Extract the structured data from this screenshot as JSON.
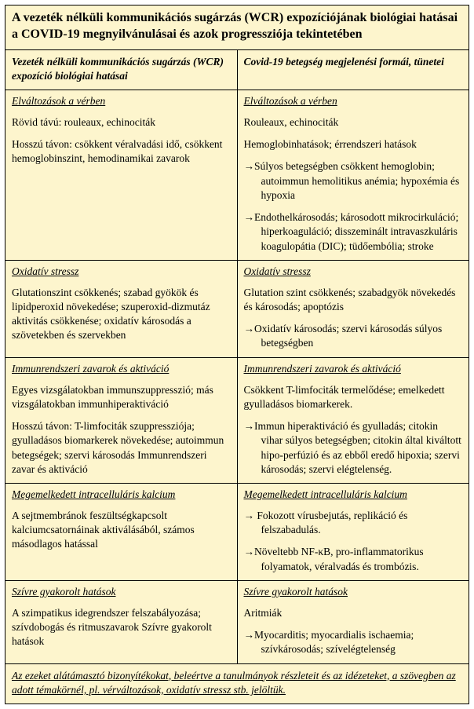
{
  "colors": {
    "background": "#fdf5cd",
    "border": "#000000",
    "text": "#000000"
  },
  "title": "A vezeték nélküli kommunikációs sugárzás (WCR) expozíciójának biológiai hatásai a COVID-19 megnyilvánulásai és azok progressziója tekintetében",
  "col_headers": {
    "left": "Vezeték nélküli kommunikációs sugárzás (WCR) expozíció biológiai hatásai",
    "right": "Covid-19 betegség megjelenési formái, tünetei"
  },
  "rows": [
    {
      "left": {
        "heading": "Elváltozások a vérben",
        "paras": [
          "Rövid távú: rouleaux, echinociták",
          "Hosszú távon: csökkent véralvadási idő, csökkent hemoglobinszint, hemodinamikai zavarok"
        ],
        "arrows": []
      },
      "right": {
        "heading": "Elváltozások a vérben",
        "paras": [
          "Rouleaux, echinociták",
          "Hemoglobinhatások; érrendszeri hatások"
        ],
        "arrows": [
          "Súlyos betegségben csökkent hemoglobin; autoimmun hemolitikus anémia; hypoxémia és hypoxia",
          "Endothelkárosodás; károsodott mikrocirkuláció; hiperkoaguláció; disszeminált intravaszkuláris koagulopátia (DIC); tüdőembólia; stroke"
        ]
      }
    },
    {
      "left": {
        "heading": "Oxidatív stressz",
        "paras": [
          "Glutationszint csökkenés; szabad gyökök és lipidperoxid növekedése; szuperoxid-dizmutáz aktivitás csökkenése; oxidatív károsodás a szövetekben és szervekben"
        ],
        "arrows": []
      },
      "right": {
        "heading": "Oxidatív stressz",
        "paras": [
          "Glutation szint csökkenés; szabadgyök növekedés és károsodás; apoptózis"
        ],
        "arrows": [
          "Oxidatív károsodás; szervi károsodás súlyos betegségben"
        ]
      }
    },
    {
      "left": {
        "heading": "Immunrendszeri zavarok és aktiváció",
        "paras": [
          "Egyes vizsgálatokban immunszuppresszió; más vizsgálatokban immunhiperaktiváció",
          "Hosszú távon: T-limfociták szuppressziója; gyulladásos biomarkerek növekedése; autoimmun betegségek; szervi károsodás Immunrendszeri zavar és aktiváció"
        ],
        "arrows": []
      },
      "right": {
        "heading": "Immunrendszeri zavarok és aktiváció",
        "paras": [
          "Csökkent T-limfociták termelődése; emelkedett gyulladásos biomarkerek."
        ],
        "arrows": [
          "Immun hiperaktiváció és gyulladás; citokin vihar súlyos betegségben; citokin által kiváltott hipo-perfúzió és az ebből eredő hipoxia; szervi károsodás; szervi elégtelenség."
        ]
      }
    },
    {
      "left": {
        "heading": "Megemelkedett intracelluláris kalcium",
        "paras": [
          "A sejtmembránok feszültségkapcsolt kalciumcsatornáinak aktiválásából, számos másodlagos hatással"
        ],
        "arrows": []
      },
      "right": {
        "heading": "Megemelkedett intracelluláris kalcium",
        "paras": [],
        "arrows": [
          " Fokozott vírusbejutás, replikáció és felszabadulás.",
          "Növeltebb NF-κB, pro-inflammatorikus folyamatok, véralvadás és trombózis."
        ]
      }
    },
    {
      "left": {
        "heading": "Szívre gyakorolt hatások",
        "paras": [
          "A szimpatikus idegrendszer felszabályozása; szívdobogás és ritmuszavarok Szívre gyakorolt hatások"
        ],
        "arrows": []
      },
      "right": {
        "heading": "Szívre gyakorolt hatások",
        "paras": [
          "Aritmiák"
        ],
        "arrows": [
          "Myocarditis; myocardialis ischaemia; szívkárosodás; szívelégtelenség"
        ]
      }
    }
  ],
  "footer": "Az ezeket alátámasztó bizonyítékokat, beleértve a tanulmányok részleteit és az idézeteket, a szövegben az adott témakörnél, pl. vérváltozások, oxidatív stressz stb. jelöltük.",
  "arrow_glyph": "→"
}
